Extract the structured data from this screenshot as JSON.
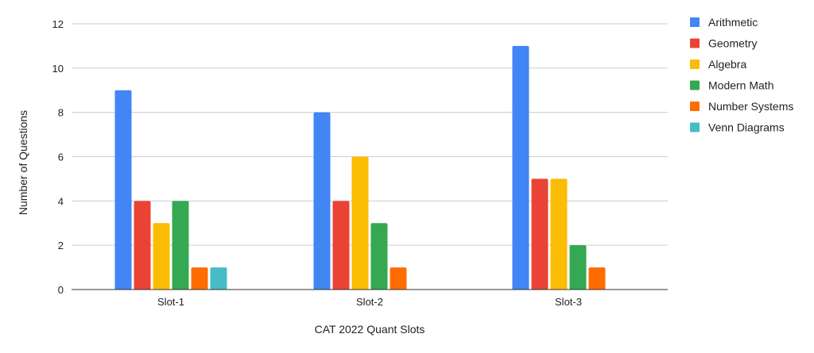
{
  "chart_data": {
    "type": "bar",
    "title": "",
    "xlabel": "CAT 2022 Quant Slots",
    "ylabel": "Number of Questions",
    "categories": [
      "Slot-1",
      "Slot-2",
      "Slot-3"
    ],
    "ylim": [
      0,
      12
    ],
    "yticks": [
      0,
      2,
      4,
      6,
      8,
      10,
      12
    ],
    "grid": true,
    "legend_position": "right",
    "series": [
      {
        "name": "Arithmetic",
        "color": "#4285F4",
        "values": [
          9,
          8,
          11
        ]
      },
      {
        "name": "Geometry",
        "color": "#EA4335",
        "values": [
          4,
          4,
          5
        ]
      },
      {
        "name": "Algebra",
        "color": "#FBBC04",
        "values": [
          3,
          6,
          5
        ]
      },
      {
        "name": "Modern Math",
        "color": "#34A853",
        "values": [
          4,
          3,
          2
        ]
      },
      {
        "name": "Number Systems",
        "color": "#FF6D01",
        "values": [
          1,
          1,
          1
        ]
      },
      {
        "name": "Venn Diagrams",
        "color": "#46BDC6",
        "values": [
          1,
          0,
          0
        ]
      }
    ]
  }
}
